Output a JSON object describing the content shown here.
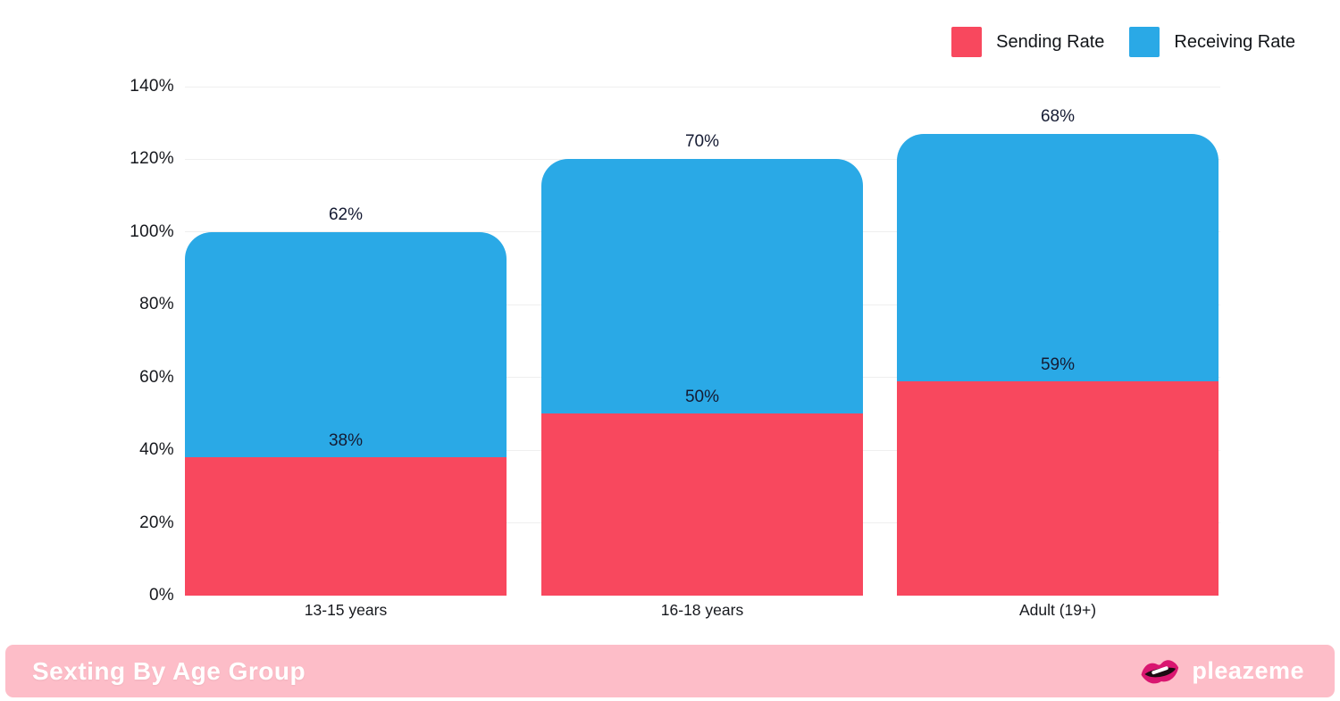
{
  "chart_data": {
    "type": "bar",
    "stacked": true,
    "categories": [
      "13-15 years",
      "16-18 years",
      "Adult (19+)"
    ],
    "series": [
      {
        "name": "Sending Rate",
        "color": "#F8485E",
        "values": [
          38,
          50,
          59
        ]
      },
      {
        "name": "Receiving Rate",
        "color": "#2AA9E6",
        "values": [
          62,
          70,
          68
        ]
      }
    ],
    "value_label_format": "{v}%",
    "y_axis": {
      "min": 0,
      "max": 140,
      "step": 20,
      "tick_format": "{v}%"
    },
    "grid": true,
    "legend_position": "top-right"
  },
  "footer": {
    "title": "Sexting By Age Group",
    "brand": "pleazeme",
    "background": "#FDBDC8",
    "brand_icon": "lips-icon",
    "lips_color": "#D91670"
  }
}
